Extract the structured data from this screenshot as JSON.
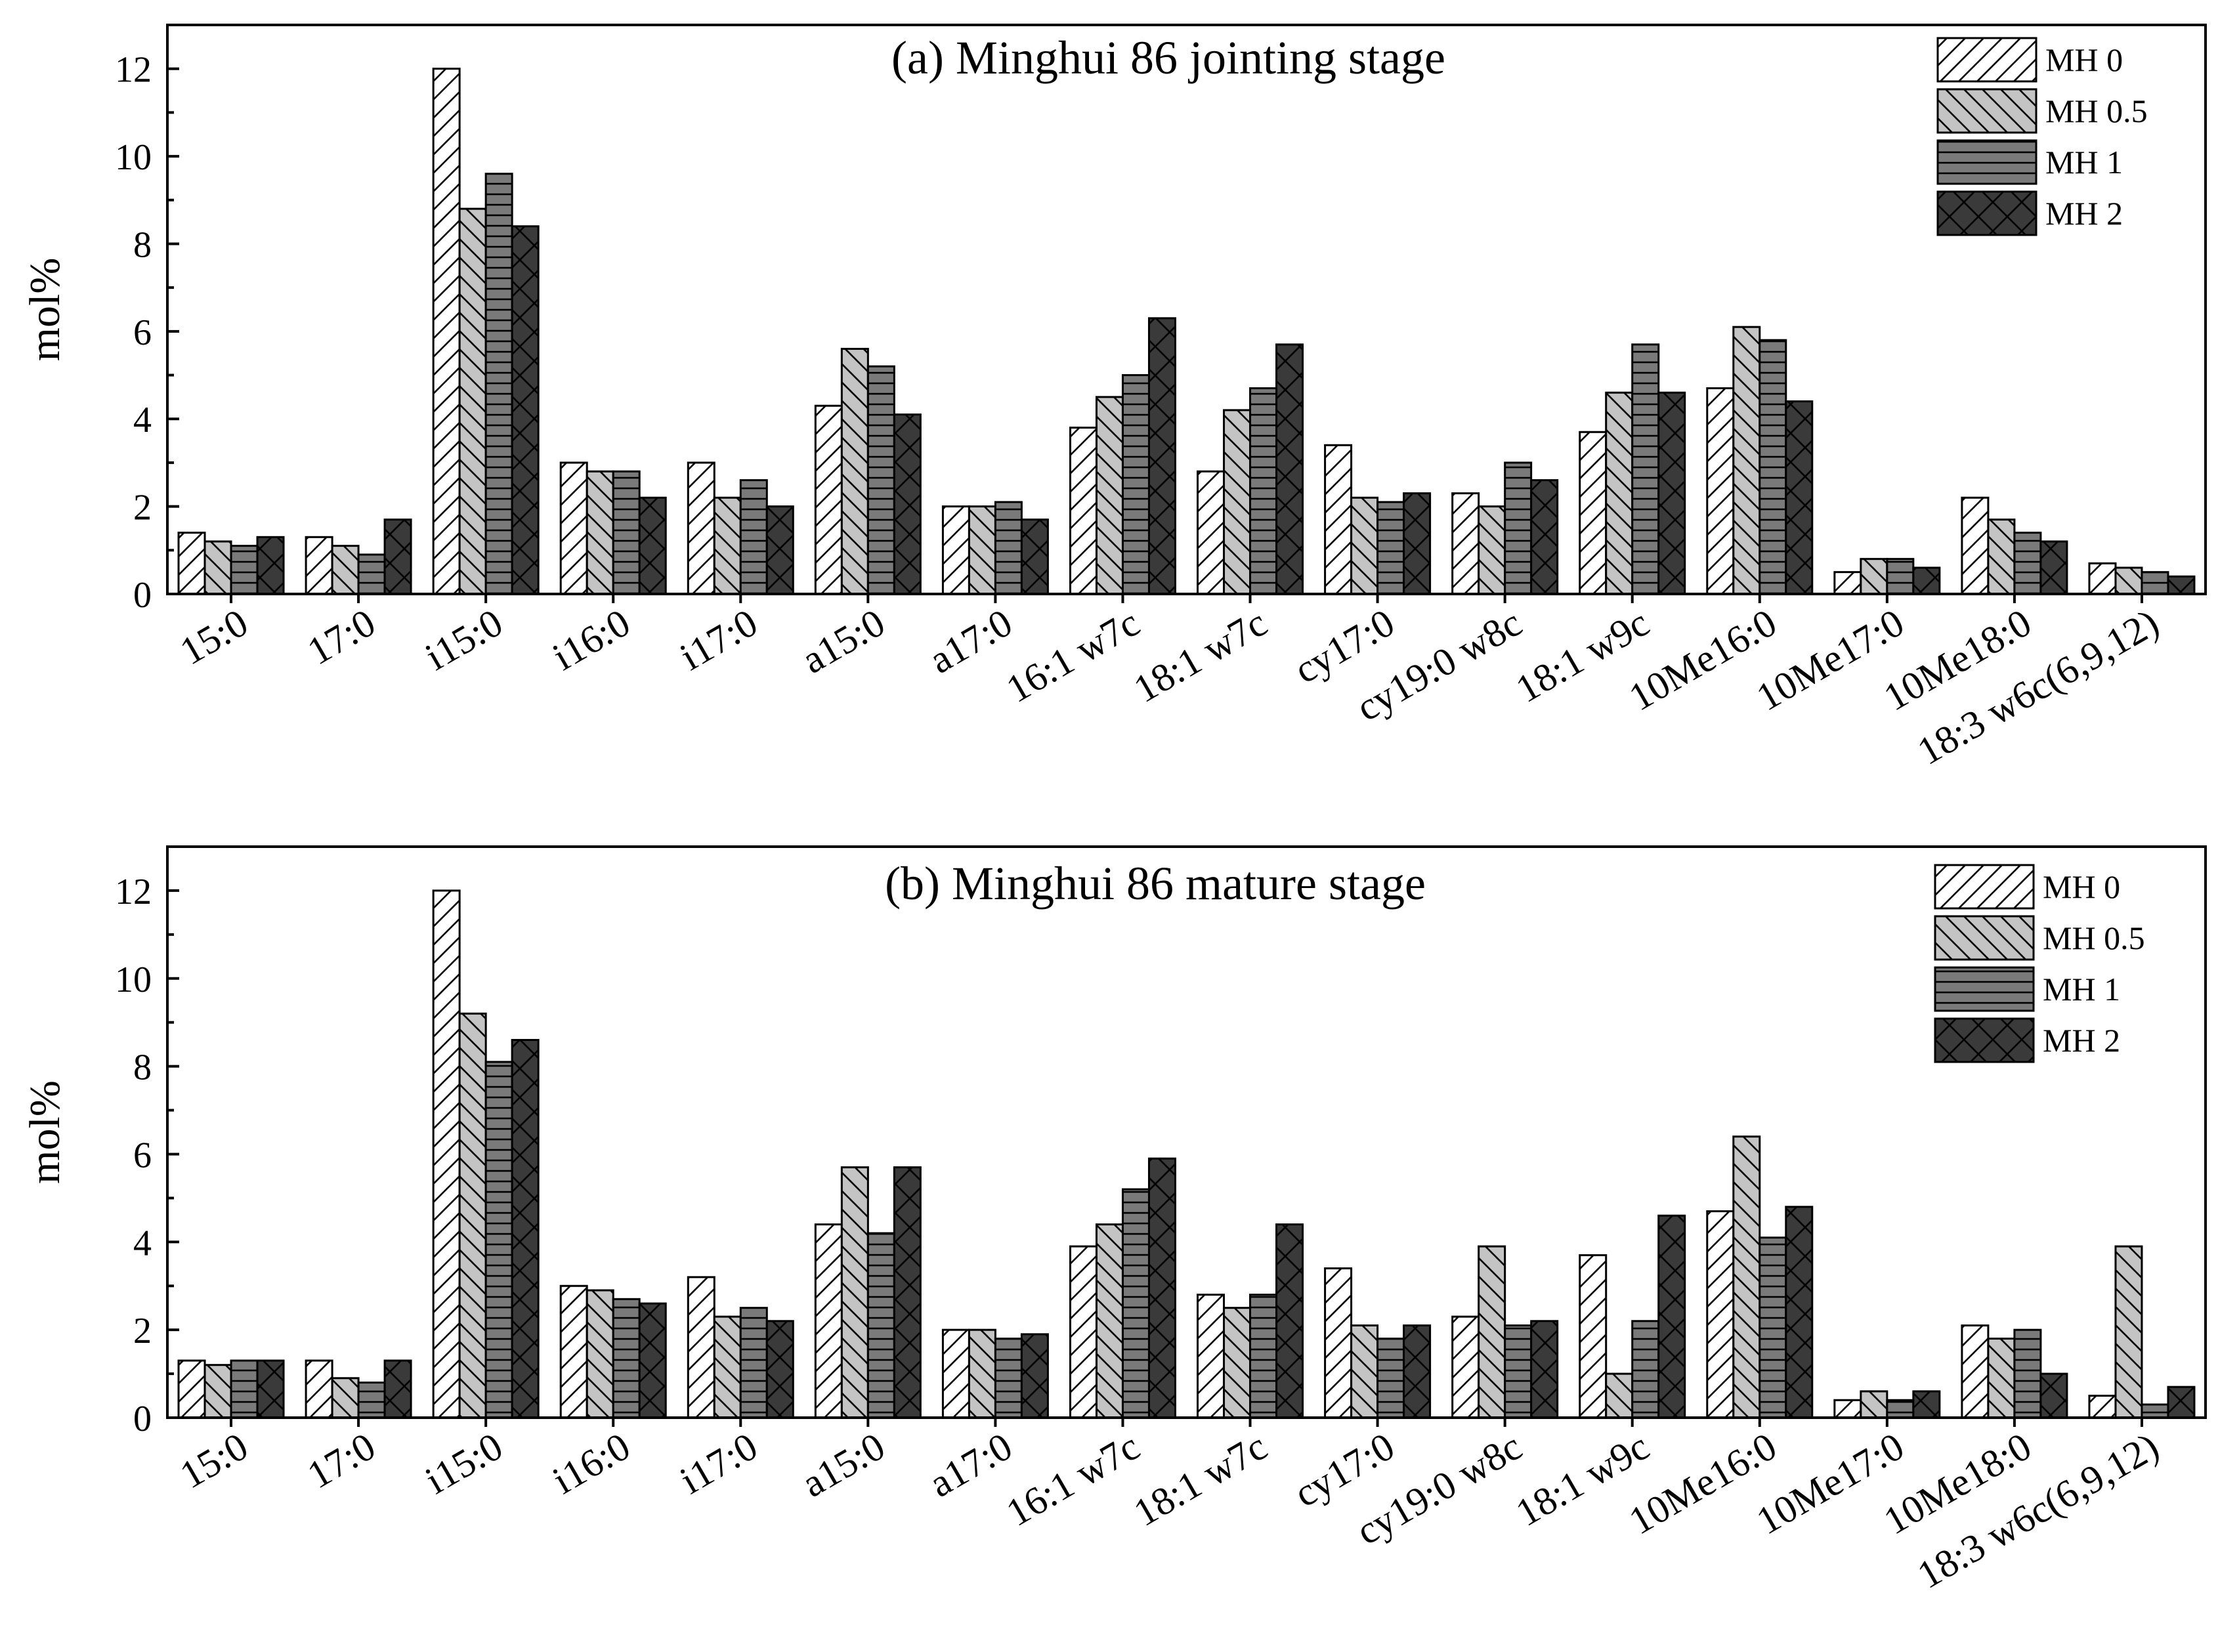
{
  "chart_data": [
    {
      "type": "bar",
      "title": "(a) Minghui 86 jointing stage",
      "xlabel": "",
      "ylabel": "mol%",
      "ylim": [
        0,
        13
      ],
      "yticks": [
        0,
        2,
        4,
        6,
        8,
        10,
        12
      ],
      "legend_position": "top-right",
      "categories": [
        "15:0",
        "17:0",
        "i15:0",
        "i16:0",
        "i17:0",
        "a15:0",
        "a17:0",
        "16:1 w7c",
        "18:1 w7c",
        "cy17:0",
        "cy19:0 w8c",
        "18:1 w9c",
        "10Me16:0",
        "10Me17:0",
        "10Me18:0",
        "18:3 w6c(6,9,12)"
      ],
      "series": [
        {
          "name": "MH 0",
          "values": [
            1.4,
            1.3,
            12.0,
            3.0,
            3.0,
            4.3,
            2.0,
            3.8,
            2.8,
            3.4,
            2.3,
            3.7,
            4.7,
            0.5,
            2.2,
            0.7
          ]
        },
        {
          "name": "MH 0.5",
          "values": [
            1.2,
            1.1,
            8.8,
            2.8,
            2.2,
            5.6,
            2.0,
            4.5,
            4.2,
            2.2,
            2.0,
            4.6,
            6.1,
            0.8,
            1.7,
            0.6
          ]
        },
        {
          "name": "MH 1",
          "values": [
            1.1,
            0.9,
            9.6,
            2.8,
            2.6,
            5.2,
            2.1,
            5.0,
            4.7,
            2.1,
            3.0,
            5.7,
            5.8,
            0.8,
            1.4,
            0.5
          ]
        },
        {
          "name": "MH 2",
          "values": [
            1.3,
            1.7,
            8.4,
            2.2,
            2.0,
            4.1,
            1.7,
            6.3,
            5.7,
            2.3,
            2.6,
            4.6,
            4.4,
            0.6,
            1.2,
            0.4
          ]
        }
      ]
    },
    {
      "type": "bar",
      "title": "(b) Minghui 86 mature stage",
      "xlabel": "",
      "ylabel": "mol%",
      "ylim": [
        0,
        13
      ],
      "yticks": [
        0,
        2,
        4,
        6,
        8,
        10,
        12
      ],
      "legend_position": "top-right",
      "categories": [
        "15:0",
        "17:0",
        "i15:0",
        "i16:0",
        "i17:0",
        "a15:0",
        "a17:0",
        "16:1 w7c",
        "18:1 w7c",
        "cy17:0",
        "cy19:0 w8c",
        "18:1 w9c",
        "10Me16:0",
        "10Me17:0",
        "10Me18:0",
        "18:3 w6c(6,9,12)"
      ],
      "series": [
        {
          "name": "MH 0",
          "values": [
            1.3,
            1.3,
            12.0,
            3.0,
            3.2,
            4.4,
            2.0,
            3.9,
            2.8,
            3.4,
            2.3,
            3.7,
            4.7,
            0.4,
            2.1,
            0.5
          ]
        },
        {
          "name": "MH 0.5",
          "values": [
            1.2,
            0.9,
            9.2,
            2.9,
            2.3,
            5.7,
            2.0,
            4.4,
            2.5,
            2.1,
            3.9,
            1.0,
            6.4,
            0.6,
            1.8,
            3.9
          ]
        },
        {
          "name": "MH 1",
          "values": [
            1.3,
            0.8,
            8.1,
            2.7,
            2.5,
            4.2,
            1.8,
            5.2,
            2.8,
            1.8,
            2.1,
            2.2,
            4.1,
            0.4,
            2.0,
            0.3
          ]
        },
        {
          "name": "MH 2",
          "values": [
            1.3,
            1.3,
            8.6,
            2.6,
            2.2,
            5.7,
            1.9,
            5.9,
            4.4,
            2.1,
            2.2,
            4.6,
            4.8,
            0.6,
            1.0,
            0.7
          ]
        }
      ]
    }
  ],
  "series_style": {
    "MH 0": {
      "fill": "#ffffff",
      "pattern": "diag-right",
      "line": "#000000"
    },
    "MH 0.5": {
      "fill": "#c4c4c4",
      "pattern": "diag-left",
      "line": "#000000"
    },
    "MH 1": {
      "fill": "#7a7a7a",
      "pattern": "horizontal",
      "line": "#000000"
    },
    "MH 2": {
      "fill": "#3a3a3a",
      "pattern": "cross",
      "line": "#000000"
    }
  }
}
